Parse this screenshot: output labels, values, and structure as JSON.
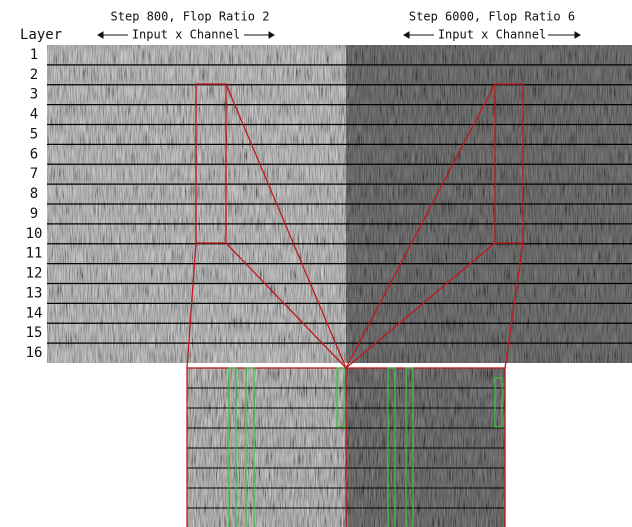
{
  "header": {
    "y_label": "Layer"
  },
  "panels": [
    {
      "title": "Step 800, Flop Ratio 2",
      "axis_label": "Input x Channel"
    },
    {
      "title": "Step 6000, Flop Ratio 6",
      "axis_label": "Input x Channel"
    }
  ],
  "layers": [
    "1",
    "2",
    "3",
    "4",
    "5",
    "6",
    "7",
    "8",
    "9",
    "10",
    "11",
    "12",
    "13",
    "14",
    "15",
    "16"
  ]
}
